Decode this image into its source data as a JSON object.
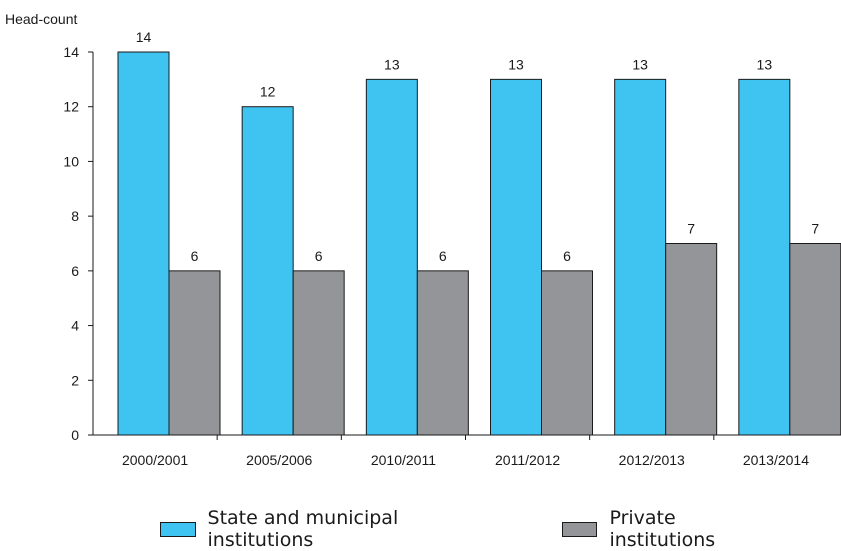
{
  "chart_data": {
    "type": "bar",
    "ylabel": "Head-count",
    "xlabel": "",
    "ylim": [
      0,
      14
    ],
    "yticks": [
      0,
      2,
      4,
      6,
      8,
      10,
      12,
      14
    ],
    "categories": [
      "2000/2001",
      "2005/2006",
      "2010/2011",
      "2011/2012",
      "2012/2013",
      "2013/2014"
    ],
    "series": [
      {
        "name": "State and municipal institutions",
        "values": [
          14,
          12,
          13,
          13,
          13,
          13
        ],
        "color": "#3fc3f0"
      },
      {
        "name": "Private institutions",
        "values": [
          6,
          6,
          6,
          6,
          7,
          7
        ],
        "color": "#939598"
      }
    ],
    "legend_position": "bottom",
    "grid": false
  }
}
